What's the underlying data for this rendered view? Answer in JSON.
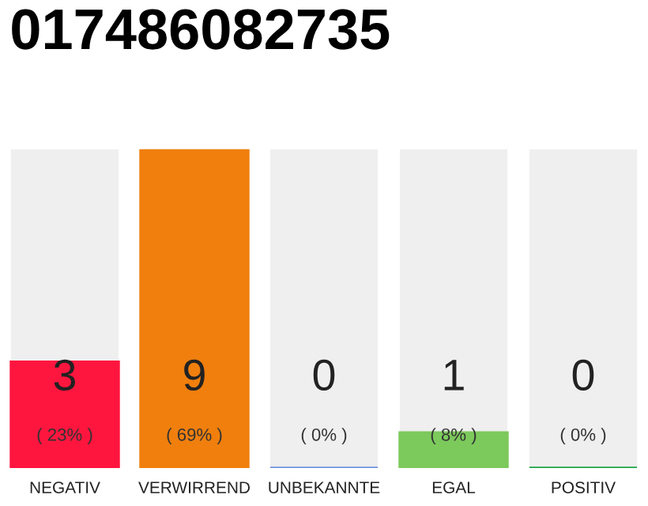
{
  "chart_data": {
    "type": "bar",
    "title": "017486082735",
    "categories": [
      "NEGATIV",
      "VERWIRREND",
      "UNBEKANNTE",
      "EGAL",
      "POSITIV"
    ],
    "values": [
      3,
      9,
      0,
      1,
      0
    ],
    "colors": [
      "#ff163e",
      "#f07f0d",
      "#6f95dd",
      "#7cc95c",
      "#1ea647"
    ],
    "ylim": [
      0,
      9
    ],
    "data_labels": true,
    "tick_labels": "x",
    "grid": false,
    "legend": false,
    "annotations": [
      "( 23% )",
      "( 69% )",
      "( 0% )",
      "( 8% )",
      "( 0% )"
    ]
  }
}
